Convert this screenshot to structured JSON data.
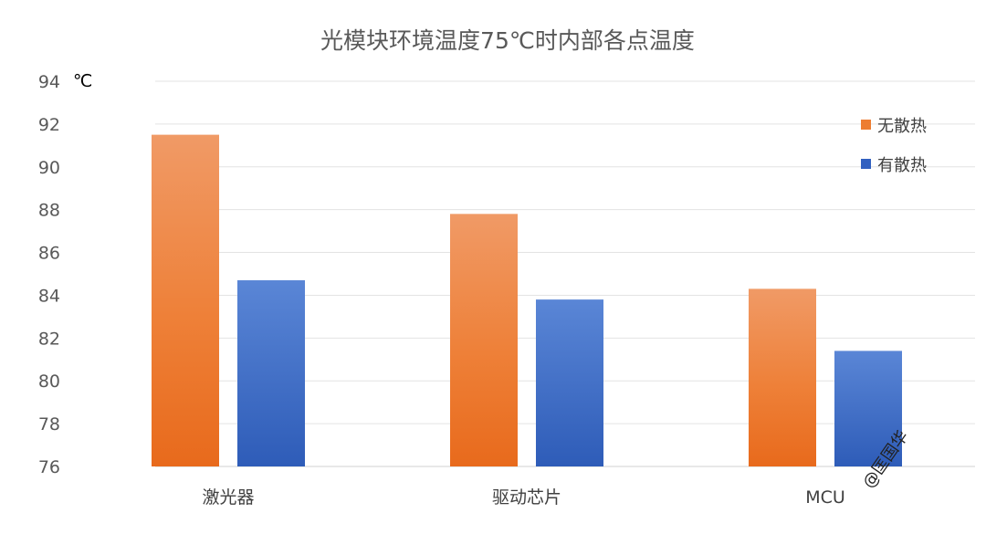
{
  "chart_data": {
    "type": "bar",
    "title": "光模块环境温度75℃时内部各点温度",
    "unit_label": "℃",
    "categories": [
      "激光器",
      "驱动芯片",
      "MCU"
    ],
    "series": [
      {
        "name": "无散热",
        "values": [
          91.5,
          87.8,
          84.3
        ],
        "color": "#ED7D31",
        "color_light": "#F09A66"
      },
      {
        "name": "有散热",
        "values": [
          84.7,
          83.8,
          81.4
        ],
        "color": "#3160C0",
        "color_light": "#5A86D6"
      }
    ],
    "ylim": [
      76,
      94
    ],
    "y_ticks": [
      76,
      78,
      80,
      82,
      84,
      86,
      88,
      90,
      92,
      94
    ],
    "grid": true,
    "legend_position": "right"
  },
  "watermark": "@匡国华"
}
